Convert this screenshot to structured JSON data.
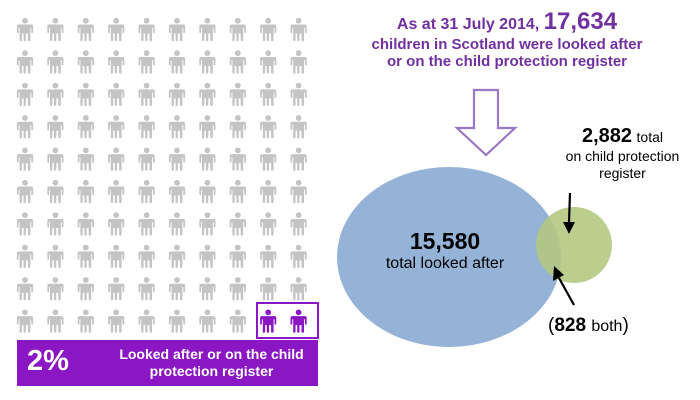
{
  "headline": {
    "prefix": "As at 31 July 2014,",
    "total": "17,634",
    "line2": "children in Scotland were looked after",
    "line3": "or on the child protection register"
  },
  "stat_box": {
    "percent": "2%",
    "text": "Looked after or on the child protection register"
  },
  "colors": {
    "figure_grey": "#c4c4c4",
    "figure_purple": "#8a16c4",
    "accent_purple": "#7030a0",
    "looked_after_circle": "#95b3d7",
    "protection_circle": "#b3c77e"
  },
  "chart_data": [
    {
      "type": "pictogram",
      "columns": 10,
      "rows": 10,
      "total_icons": 100,
      "highlighted_icons": 2,
      "highlighted_percent": 2
    },
    {
      "type": "venn",
      "sets": [
        {
          "value": "15,580",
          "label": "total looked after"
        },
        {
          "value": "2,882",
          "label": "total on child protection register"
        }
      ],
      "overlap": {
        "value": "828",
        "label": "both"
      }
    }
  ]
}
